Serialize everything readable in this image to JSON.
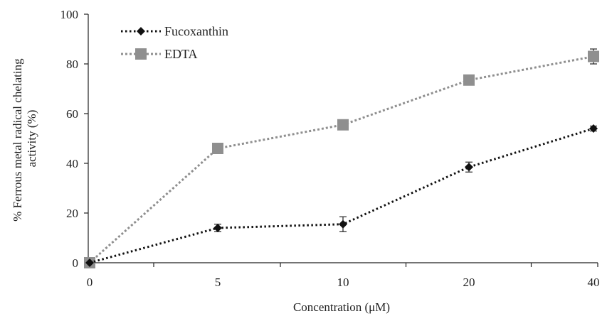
{
  "chart_data": {
    "type": "line",
    "title": "",
    "xlabel": "Concentration (μM)",
    "ylabel": "% Ferrous metal radical chelating activity (%)",
    "ylabel_lines": [
      "% Ferrous metal radical chelating",
      "activity (%)"
    ],
    "categories": [
      "0",
      "5",
      "10",
      "20",
      "40"
    ],
    "ylim": [
      0,
      100
    ],
    "yticks": [
      "0",
      "20",
      "40",
      "60",
      "80",
      "100"
    ],
    "grid": false,
    "legend_position": "top-left",
    "series": [
      {
        "name": "Fucoxanthin",
        "values": [
          0,
          14,
          15.5,
          38.5,
          54
        ],
        "errors": [
          0,
          1.5,
          3.0,
          2.0,
          1.0
        ],
        "marker": "diamond",
        "color": "#111111"
      },
      {
        "name": "EDTA",
        "values": [
          0,
          46,
          55.5,
          73.5,
          83
        ],
        "errors": [
          0,
          1.0,
          1.0,
          1.0,
          3.0
        ],
        "marker": "square",
        "color": "#8f8f8f"
      }
    ]
  }
}
